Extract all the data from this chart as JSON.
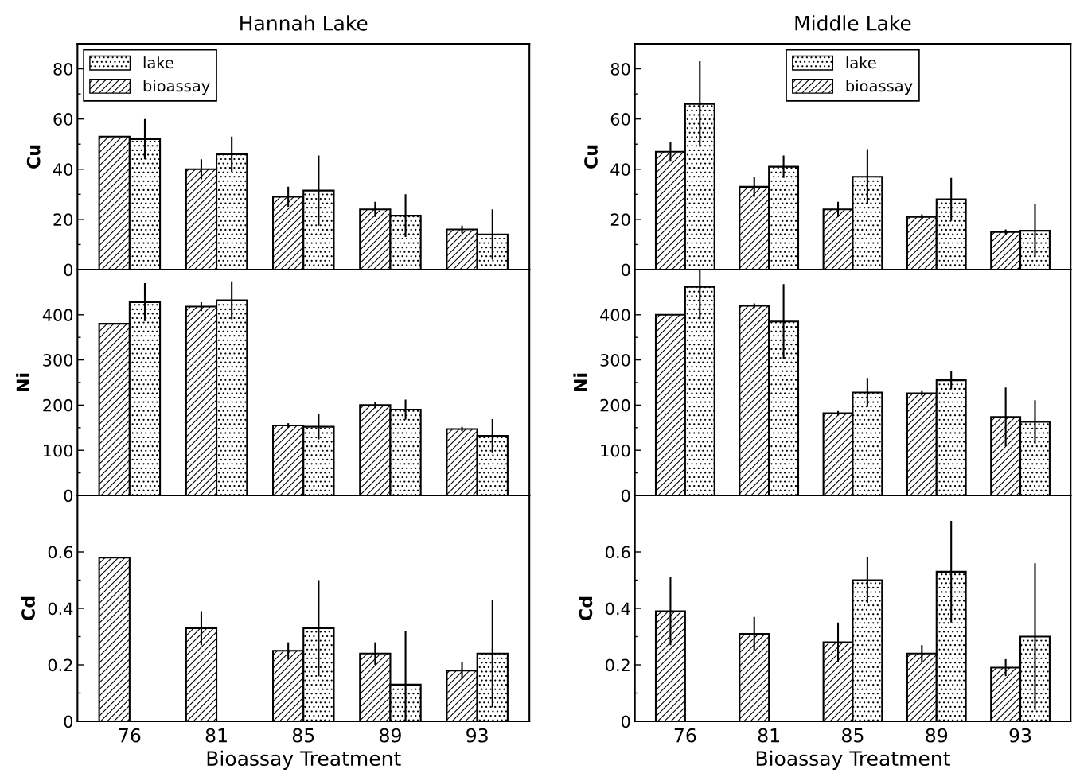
{
  "chart_data": [
    {
      "type": "bar",
      "title": "Hannah Lake",
      "ylabel": "Cu",
      "categories": [
        "76",
        "81",
        "85",
        "89",
        "93"
      ],
      "ylim": [
        0,
        90
      ],
      "yticks": [
        0,
        20,
        40,
        60,
        80
      ],
      "tick_labels": "y",
      "legend": "top left",
      "series": [
        {
          "name": "bioassay",
          "color": "#000000",
          "values": [
            53,
            40,
            29,
            24,
            16
          ],
          "errors": [
            null,
            4,
            4,
            3,
            1.5
          ]
        },
        {
          "name": "lake",
          "color": "#000000",
          "values": [
            52,
            46,
            31.5,
            21.5,
            14
          ],
          "errors": [
            8,
            7,
            14,
            8.5,
            10
          ]
        }
      ]
    },
    {
      "type": "bar",
      "title": "Middle Lake",
      "ylabel": "Cu",
      "categories": [
        "76",
        "81",
        "85",
        "89",
        "93"
      ],
      "ylim": [
        0,
        90
      ],
      "yticks": [
        0,
        20,
        40,
        60,
        80
      ],
      "tick_labels": "y",
      "legend": "top",
      "series": [
        {
          "name": "bioassay",
          "color": "#000000",
          "values": [
            47,
            33,
            24,
            21,
            15
          ],
          "errors": [
            4,
            4,
            3,
            1,
            1
          ]
        },
        {
          "name": "lake",
          "color": "#000000",
          "values": [
            66,
            41,
            37,
            28,
            15.5
          ],
          "errors": [
            17,
            4.5,
            11,
            8.5,
            10.5
          ]
        }
      ]
    },
    {
      "type": "bar",
      "ylabel": "Ni",
      "categories": [
        "76",
        "81",
        "85",
        "89",
        "93"
      ],
      "ylim": [
        0,
        500
      ],
      "yticks": [
        0,
        100,
        200,
        300,
        400
      ],
      "tick_labels": "y",
      "series": [
        {
          "color": "#000000",
          "values": [
            380,
            418,
            155,
            200,
            147
          ],
          "errors": [
            null,
            10,
            5,
            7,
            5
          ]
        },
        {
          "color": "#000000",
          "values": [
            428,
            432,
            152,
            190,
            132
          ],
          "errors": [
            42,
            42,
            28,
            22,
            37
          ]
        }
      ]
    },
    {
      "type": "bar",
      "ylabel": "Ni",
      "categories": [
        "76",
        "81",
        "85",
        "89",
        "93"
      ],
      "ylim": [
        0,
        500
      ],
      "yticks": [
        0,
        100,
        200,
        300,
        400
      ],
      "tick_labels": "y",
      "series": [
        {
          "color": "#000000",
          "values": [
            400,
            420,
            182,
            226,
            174
          ],
          "errors": [
            null,
            5,
            5,
            5,
            65
          ]
        },
        {
          "color": "#000000",
          "values": [
            462,
            385,
            228,
            255,
            163
          ],
          "errors": [
            [
              390,
              500
            ],
            83,
            32,
            20,
            48
          ]
        }
      ]
    },
    {
      "type": "bar",
      "ylabel": "Cd",
      "xlabel": "Bioassay Treatment",
      "categories": [
        "76",
        "81",
        "85",
        "89",
        "93"
      ],
      "ylim": [
        0,
        0.8
      ],
      "yticks": [
        0,
        0.2,
        0.4,
        0.6
      ],
      "series": [
        {
          "color": "#000000",
          "values": [
            0.58,
            0.33,
            0.25,
            0.24,
            0.18
          ],
          "errors": [
            null,
            0.06,
            0.03,
            0.04,
            0.03
          ]
        },
        {
          "color": "#000000",
          "values": [
            null,
            null,
            0.33,
            0.13,
            0.24
          ],
          "errors": [
            null,
            null,
            0.17,
            0.19,
            0.19
          ]
        }
      ]
    },
    {
      "type": "bar",
      "ylabel": "Cd",
      "xlabel": "Bioassay Treatment",
      "categories": [
        "76",
        "81",
        "85",
        "89",
        "93"
      ],
      "ylim": [
        0,
        0.8
      ],
      "yticks": [
        0,
        0.2,
        0.4,
        0.6
      ],
      "series": [
        {
          "color": "#000000",
          "values": [
            0.39,
            0.31,
            0.28,
            0.24,
            0.19
          ],
          "errors": [
            0.12,
            0.06,
            0.07,
            0.03,
            0.03
          ]
        },
        {
          "color": "#000000",
          "values": [
            null,
            null,
            0.5,
            0.53,
            0.3
          ],
          "errors": [
            null,
            null,
            0.08,
            0.18,
            0.26
          ]
        }
      ]
    }
  ]
}
